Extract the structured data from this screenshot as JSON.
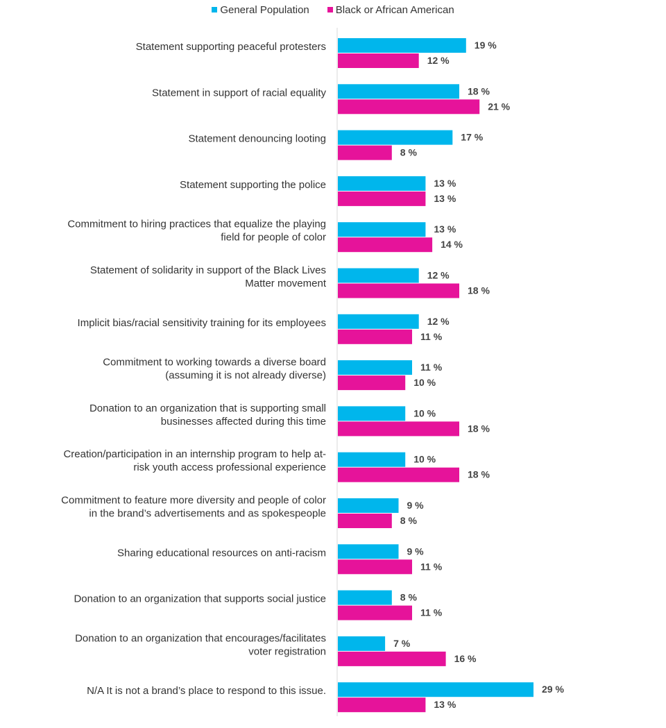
{
  "chart_data": {
    "type": "bar",
    "orientation": "horizontal",
    "categories": [
      [
        "Statement supporting peaceful protesters"
      ],
      [
        "Statement in support of racial equality"
      ],
      [
        "Statement denouncing looting"
      ],
      [
        "Statement supporting the police"
      ],
      [
        "Commitment to hiring practices that equalize the playing",
        "field for people of color"
      ],
      [
        "Statement of solidarity in support of the Black Lives",
        "Matter movement"
      ],
      [
        "Implicit bias/racial sensitivity training for its employees"
      ],
      [
        "Commitment to working towards a diverse board",
        "(assuming it is not already diverse)"
      ],
      [
        "Donation to an organization that is supporting small",
        "businesses affected during this time"
      ],
      [
        "Creation/participation in an internship program to help at-",
        "risk youth access professional experience"
      ],
      [
        "Commitment to feature more diversity and people of color",
        "in the brand’s advertisements and as spokespeople"
      ],
      [
        "Sharing educational resources on anti-racism"
      ],
      [
        "Donation to an organization that supports social justice"
      ],
      [
        "Donation to an organization that encourages/facilitates",
        "voter registration"
      ],
      [
        "N/A It is not a brand’s place to respond to this issue."
      ]
    ],
    "series": [
      {
        "name": "General Population",
        "color": "#00B6EC",
        "values": [
          19,
          18,
          17,
          13,
          13,
          12,
          12,
          11,
          10,
          10,
          9,
          9,
          8,
          7,
          29
        ],
        "labels": [
          "19 %",
          "18 %",
          "17 %",
          "13 %",
          "13 %",
          "12 %",
          "12 %",
          "11 %",
          "10 %",
          "10 %",
          "9 %",
          "9 %",
          "8 %",
          "7 %",
          "29 %"
        ]
      },
      {
        "name": "Black or African American",
        "color": "#E6139A",
        "values": [
          12,
          21,
          8,
          13,
          14,
          18,
          11,
          10,
          18,
          18,
          8,
          11,
          11,
          16,
          13
        ],
        "labels": [
          "12 %",
          "21 %",
          "8 %",
          "13 %",
          "14 %",
          "18 %",
          "11 %",
          "10 %",
          "18 %",
          "18 %",
          "8 %",
          "11 %",
          "11 %",
          "16 %",
          "13 %"
        ]
      }
    ],
    "legend_position": "top-center",
    "grid": false,
    "xlim": [
      0,
      29
    ]
  },
  "axis_color": "#d9d9d9"
}
